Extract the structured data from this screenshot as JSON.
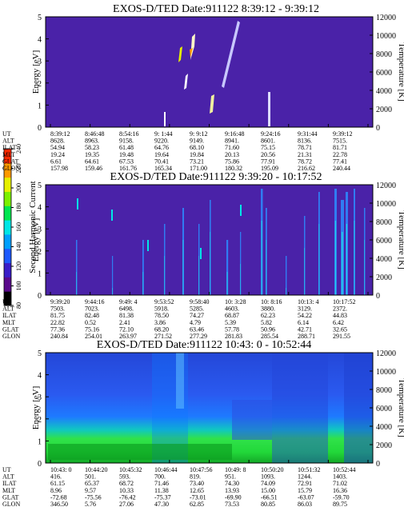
{
  "chart_data": [
    {
      "type": "heatmap",
      "title": "EXOS-D/TED   Date:911122  8:39:12 - 9:39:12",
      "ylabel": "Energy [eV]",
      "y2label": "Temperature [K]",
      "ylim": [
        0,
        5
      ],
      "y2lim": [
        0,
        12000
      ],
      "yticks": [
        "0",
        "1",
        "2",
        "3",
        "4",
        "5"
      ],
      "y2ticks": [
        "0",
        "2000",
        "4000",
        "6000",
        "8000",
        "10000",
        "12000"
      ],
      "background": "#4a22a8",
      "orbit": {
        "labels": [
          "UT",
          "ALT",
          "ILAT",
          "MLT",
          "GLAT",
          "GLON"
        ],
        "columns": [
          [
            "8:39:12",
            "8628.",
            "54.94",
            "19.24",
            "6.61",
            "157.98"
          ],
          [
            "8:46:48",
            "8963.",
            "58.23",
            "19.35",
            "64.61",
            "159.46"
          ],
          [
            "8:54:16",
            "9158.",
            "61.48",
            "19.48",
            "67.53",
            "161.76"
          ],
          [
            "9: 1:44",
            "9220.",
            "64.76",
            "19.64",
            "70.41",
            "165.34"
          ],
          [
            "9: 9:12",
            "9149.",
            "68.10",
            "19.84",
            "73.21",
            "171.00"
          ],
          [
            "9:16:48",
            "8941.",
            "71.60",
            "20.13",
            "75.86",
            "180.32"
          ],
          [
            "9:24:16",
            "8601.",
            "75.15",
            "20.56",
            "77.91",
            "195.09"
          ],
          [
            "9:31:44",
            "8136.",
            "78.71",
            "21.31",
            "78.72",
            "216.62"
          ],
          [
            "9:39:12",
            "7515.",
            "81.71",
            "22.78",
            "77.41",
            "240.44"
          ]
        ]
      }
    },
    {
      "type": "heatmap",
      "title": "EXOS-D/TED   Date:911122  9:39:20 - 10:17:52",
      "ylabel": "Energy [eV]",
      "y2label": "Temperature [K]",
      "ylim": [
        0,
        5
      ],
      "y2lim": [
        0,
        12000
      ],
      "yticks": [
        "0",
        "1",
        "2",
        "3",
        "4",
        "5"
      ],
      "y2ticks": [
        "0",
        "2000",
        "4000",
        "6000",
        "8000",
        "10000",
        "12000"
      ],
      "background": "#4a22a8",
      "orbit": {
        "labels": [
          "UT",
          "ALT",
          "ILAT",
          "MLT",
          "GLAT",
          "GLON"
        ],
        "columns": [
          [
            "9:39:20",
            "7503.",
            "81.75",
            "22.82",
            "77.36",
            "240.84"
          ],
          [
            "9:44:16",
            "7023.",
            "82.48",
            "0.52",
            "75.16",
            "254.01"
          ],
          [
            "9:49: 4",
            "6498.",
            "81.38",
            "2.41",
            "72.10",
            "263.97"
          ],
          [
            "9:53:52",
            "5918.",
            "78.50",
            "3.86",
            "68.20",
            "271.52"
          ],
          [
            "9:58:40",
            "5285.",
            "74.27",
            "4.79",
            "63.46",
            "277.29"
          ],
          [
            "10: 3:28",
            "4603.",
            "68.87",
            "5.39",
            "57.78",
            "281.83"
          ],
          [
            "10: 8:16",
            "3880.",
            "62.23",
            "5.82",
            "50.96",
            "285.54"
          ],
          [
            "10:13: 4",
            "3129.",
            "54.22",
            "6.14",
            "42.71",
            "288.71"
          ],
          [
            "10:17:52",
            "2372.",
            "44.83",
            "6.42",
            "32.65",
            "291.55"
          ]
        ]
      }
    },
    {
      "type": "heatmap",
      "title": "EXOS-D/TED   Date:911122  10:43: 0 - 10:52:44",
      "ylabel": "Energy [eV]",
      "y2label": "Temperature [K]",
      "ylim": [
        0,
        5
      ],
      "y2lim": [
        0,
        12000
      ],
      "yticks": [
        "0",
        "1",
        "2",
        "3",
        "4",
        "5"
      ],
      "y2ticks": [
        "0",
        "2000",
        "4000",
        "6000",
        "8000",
        "10000",
        "12000"
      ],
      "orbit": {
        "labels": [
          "UT",
          "ALT",
          "ILAT",
          "MLT",
          "GLAT",
          "GLON"
        ],
        "columns": [
          [
            "10:43: 0",
            "416.",
            "61.15",
            "8.96",
            "-72.68",
            "346.50"
          ],
          [
            "10:44:20",
            "501.",
            "65.37",
            "9.57",
            "-75.56",
            "5.76"
          ],
          [
            "10:45:32",
            "593.",
            "68.72",
            "10.33",
            "-76.42",
            "27.06"
          ],
          [
            "10:46:44",
            "700.",
            "71.46",
            "11.38",
            "-75.37",
            "47.30"
          ],
          [
            "10:47:56",
            "819.",
            "73.40",
            "12.65",
            "-73.01",
            "62.85"
          ],
          [
            "10:49: 8",
            "951.",
            "74.30",
            "13.93",
            "-69.90",
            "73.53"
          ],
          [
            "10:50:20",
            "1093.",
            "74.09",
            "15.00",
            "-66.51",
            "80.85"
          ],
          [
            "10:51:32",
            "1244.",
            "72.91",
            "15.79",
            "-63.07",
            "86.03"
          ],
          [
            "10:52:44",
            "1403.",
            "71.02",
            "16.36",
            "-59.70",
            "89.75"
          ]
        ]
      }
    }
  ],
  "colorbar": {
    "label": "Second Harmonic Current",
    "ticks": [
      "80",
      "100",
      "120",
      "140",
      "160",
      "180",
      "200",
      "220",
      "240"
    ],
    "range": [
      80,
      240
    ],
    "colors": [
      "#000000",
      "#5a0a8c",
      "#3a1ec8",
      "#1e5aff",
      "#00a0ff",
      "#00e6e6",
      "#00e650",
      "#7cf000",
      "#e6f000",
      "#ff9a00",
      "#ff2a00"
    ]
  }
}
